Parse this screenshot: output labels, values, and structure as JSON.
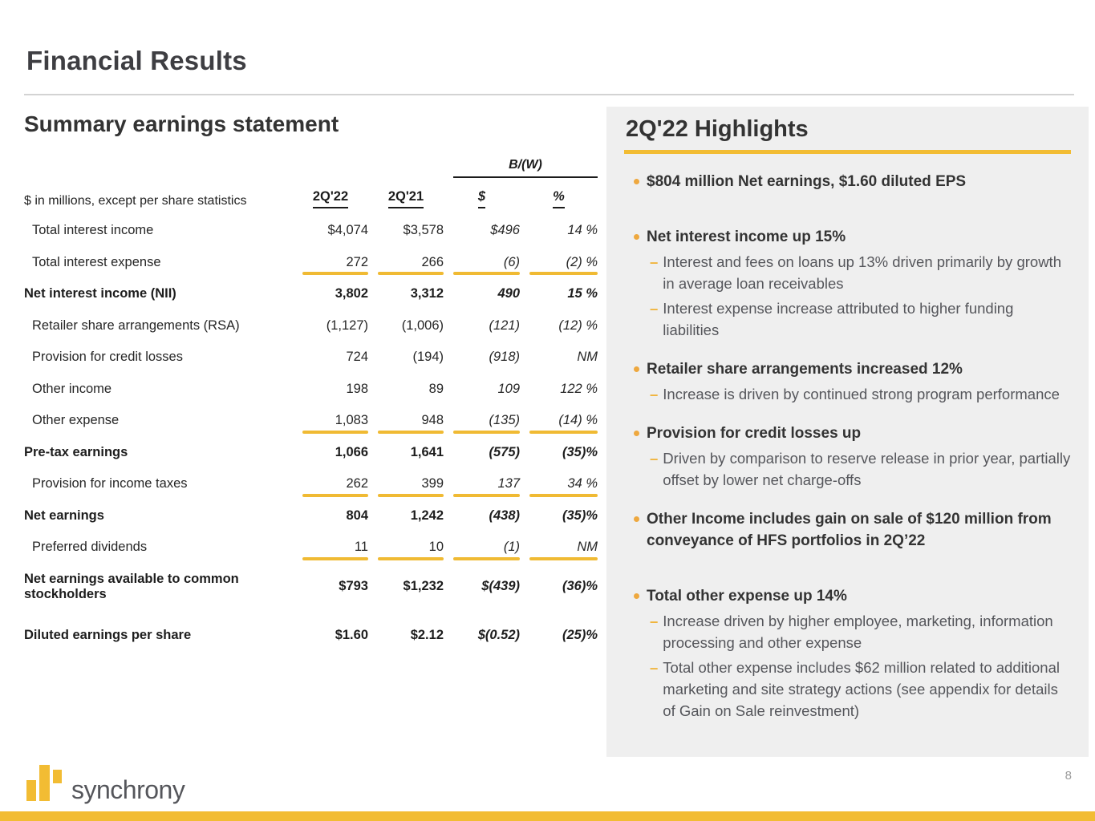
{
  "slide": {
    "title": "Financial Results"
  },
  "colors": {
    "gold": "#F2BC33",
    "table_rule_gold": "#F0BA33",
    "bullet_dot": "#EEA83F",
    "dark_text": "#333333",
    "sub_text": "#55565B",
    "panel_bg": "#EFEFEF"
  },
  "table": {
    "section_title": "Summary earnings statement",
    "bw_header": "B/(W)",
    "note": "$ in millions, except per share statistics",
    "headers": [
      "2Q'22",
      "2Q'21",
      "$",
      "%"
    ],
    "rows": [
      {
        "label": "Total interest income",
        "q22": "$4,074",
        "q21": "$3,578",
        "bw_d": "$496",
        "bw_p": "14 %"
      },
      {
        "label": "Total interest expense",
        "q22": "272",
        "q21": "266",
        "bw_d": "(6)",
        "bw_p": "(2) %"
      },
      {
        "label": "Net interest income (NII)",
        "q22": "3,802",
        "q21": "3,312",
        "bw_d": "490",
        "bw_p": "15 %"
      },
      {
        "label": "Retailer share arrangements (RSA)",
        "q22": "(1,127)",
        "q21": "(1,006)",
        "bw_d": "(121)",
        "bw_p": "(12) %"
      },
      {
        "label": "Provision for credit losses",
        "q22": "724",
        "q21": "(194)",
        "bw_d": "(918)",
        "bw_p": "NM"
      },
      {
        "label": "Other income",
        "q22": "198",
        "q21": "89",
        "bw_d": "109",
        "bw_p": "122 %"
      },
      {
        "label": "Other expense",
        "q22": "1,083",
        "q21": "948",
        "bw_d": "(135)",
        "bw_p": "(14) %"
      },
      {
        "label": "Pre-tax earnings",
        "q22": "1,066",
        "q21": "1,641",
        "bw_d": "(575)",
        "bw_p": "(35)%"
      },
      {
        "label": "Provision for income taxes",
        "q22": "262",
        "q21": "399",
        "bw_d": "137",
        "bw_p": "34 %"
      },
      {
        "label": "Net earnings",
        "q22": "804",
        "q21": "1,242",
        "bw_d": "(438)",
        "bw_p": "(35)%"
      },
      {
        "label": "Preferred dividends",
        "q22": "11",
        "q21": "10",
        "bw_d": "(1)",
        "bw_p": "NM"
      },
      {
        "label": "Net earnings available to common stockholders",
        "q22": "$793",
        "q21": "$1,232",
        "bw_d": "$(439)",
        "bw_p": "(36)%"
      },
      {
        "label": "Diluted earnings per share",
        "q22": "$1.60",
        "q21": "$2.12",
        "bw_d": "$(0.52)",
        "bw_p": "(25)%"
      }
    ]
  },
  "highlights": {
    "title": "2Q'22 Highlights",
    "items": [
      {
        "text": "$804 million Net earnings, $1.60 diluted EPS",
        "subs": []
      },
      {
        "text": "Net interest income up 15%",
        "subs": [
          "Interest and fees on loans up 13% driven primarily by growth in average loan receivables",
          "Interest expense increase attributed to higher funding liabilities"
        ]
      },
      {
        "text": "Retailer share arrangements increased 12%",
        "subs": [
          "Increase is driven by continued strong program performance"
        ]
      },
      {
        "text": "Provision for credit losses up",
        "subs": [
          "Driven by comparison to reserve release in prior year, partially offset by lower net charge-offs"
        ]
      },
      {
        "text": "Other Income includes gain on sale of $120 million from conveyance of HFS portfolios in 2Q’22",
        "subs": []
      },
      {
        "text": "Total other expense up 14%",
        "subs": [
          "Increase driven by higher employee, marketing, information processing and other expense",
          "Total other expense includes $62 million related to additional marketing and site strategy actions (see appendix for details of Gain on Sale reinvestment)"
        ]
      }
    ]
  },
  "footer": {
    "logo_text": "synchrony",
    "page_number": "8"
  }
}
